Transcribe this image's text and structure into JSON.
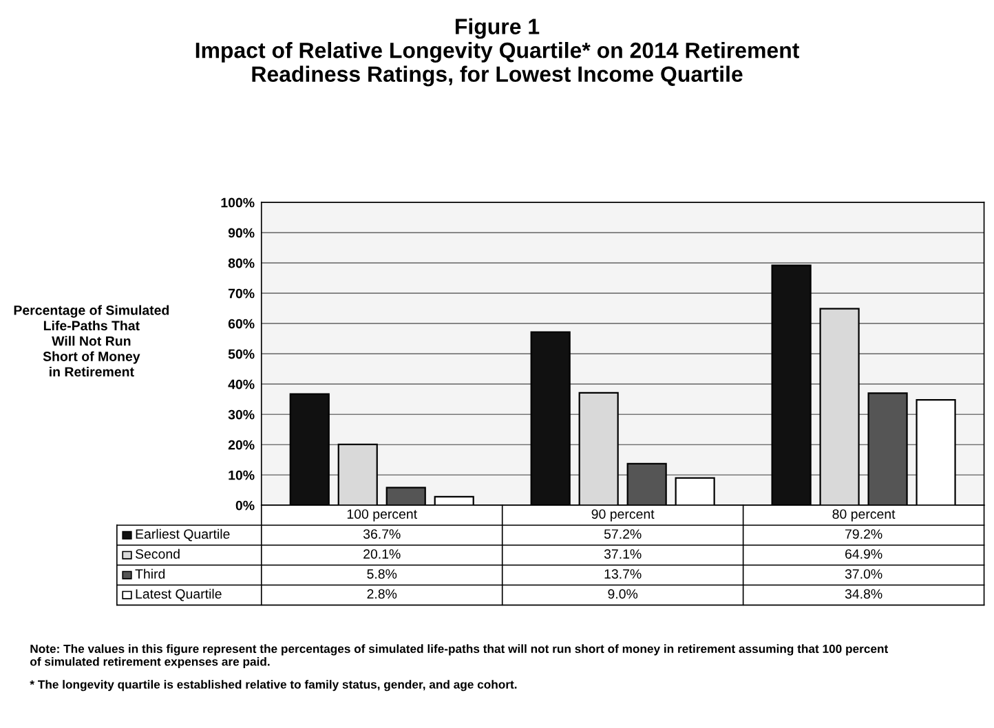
{
  "chart_data": {
    "type": "bar",
    "title": "Figure 1\nImpact of Relative Longevity Quartile* on 2014 Retirement\nReadiness Ratings, for Lowest Income Quartile",
    "ylabel": "Percentage of Simulated\nLife-Paths That\nWill Not Run\nShort of Money\nin Retirement",
    "categories": [
      "100 percent",
      "90 percent",
      "80 percent"
    ],
    "series": [
      {
        "name": "Earliest Quartile",
        "color": "#111111",
        "values": [
          36.7,
          57.2,
          79.2
        ]
      },
      {
        "name": "Second",
        "color": "#d9d9d9",
        "values": [
          20.1,
          37.1,
          64.9
        ]
      },
      {
        "name": "Third",
        "color": "#555555",
        "values": [
          5.8,
          13.7,
          37.0
        ]
      },
      {
        "name": "Latest Quartile",
        "color": "#ffffff",
        "values": [
          2.8,
          9.0,
          34.8
        ]
      }
    ],
    "value_labels": [
      [
        "36.7%",
        "57.2%",
        "79.2%"
      ],
      [
        "20.1%",
        "37.1%",
        "64.9%"
      ],
      [
        "5.8%",
        "13.7%",
        "37.0%"
      ],
      [
        "2.8%",
        "9.0%",
        "34.8%"
      ]
    ],
    "ylim": [
      0,
      100
    ],
    "yticks": [
      {
        "value": 0,
        "label": "0%"
      },
      {
        "value": 10,
        "label": "10%"
      },
      {
        "value": 20,
        "label": "20%"
      },
      {
        "value": 30,
        "label": "30%"
      },
      {
        "value": 40,
        "label": "40%"
      },
      {
        "value": 50,
        "label": "50%"
      },
      {
        "value": 60,
        "label": "60%"
      },
      {
        "value": 70,
        "label": "70%"
      },
      {
        "value": 80,
        "label": "80%"
      },
      {
        "value": 90,
        "label": "90%"
      },
      {
        "value": 100,
        "label": "100%"
      }
    ],
    "grid": "y",
    "legend": "bottom",
    "annotations": [
      "Note: The values in this figure represent the percentages of simulated life-paths that will not run short of money in retirement assuming that 100 percent\nof simulated retirement expenses are paid.",
      "* The longevity quartile is established relative to family status, gender, and age cohort."
    ]
  }
}
